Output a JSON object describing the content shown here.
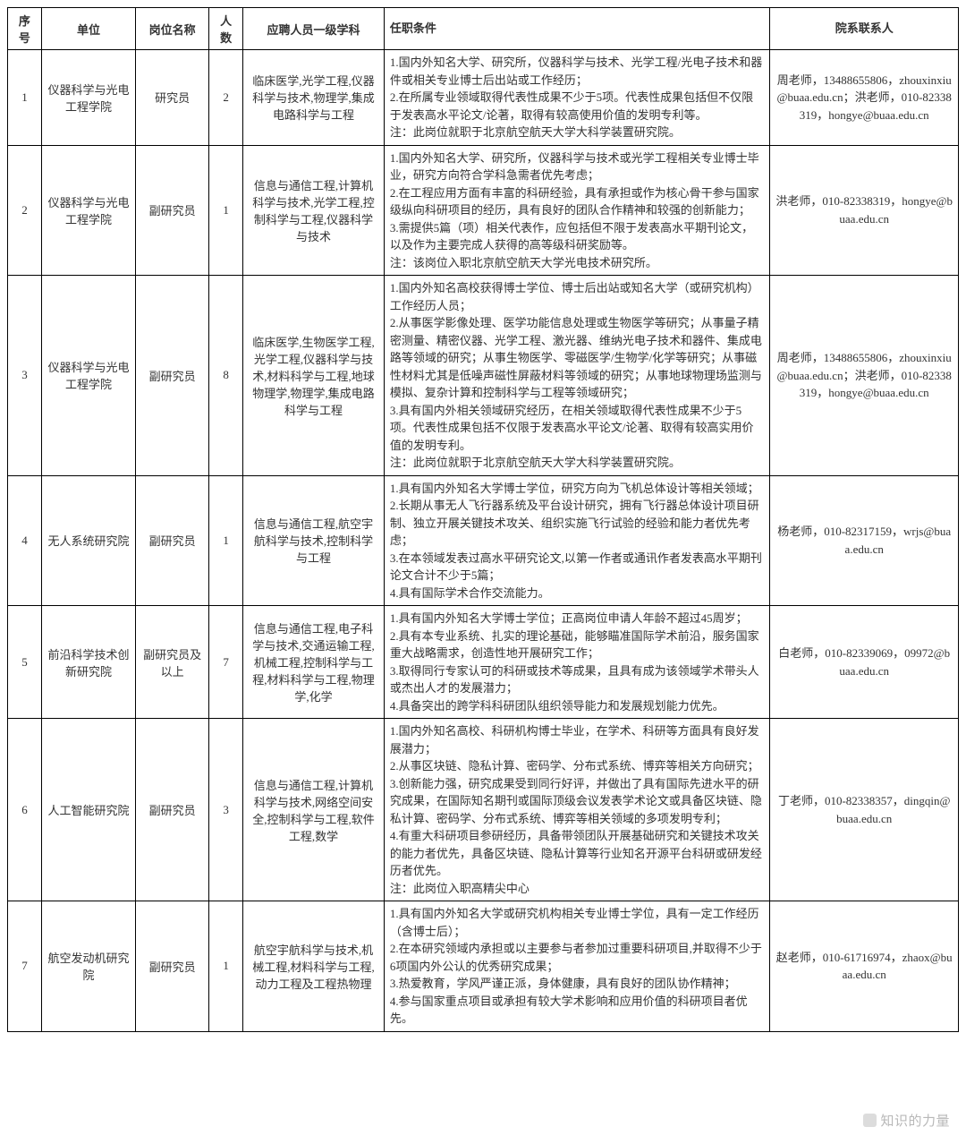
{
  "headers": {
    "seq": "序号",
    "unit": "单位",
    "pos": "岗位名称",
    "num": "人数",
    "subj": "应聘人员一级学科",
    "req": "任职条件",
    "contact": "院系联系人"
  },
  "rows": [
    {
      "seq": "1",
      "unit": "仪器科学与光电工程学院",
      "pos": "研究员",
      "num": "2",
      "subj": "临床医学,光学工程,仪器科学与技术,物理学,集成电路科学与工程",
      "req": "1.国内外知名大学、研究所，仪器科学与技术、光学工程/光电子技术和器件或相关专业博士后出站或工作经历；\n2.在所属专业领域取得代表性成果不少于5项。代表性成果包括但不仅限于发表高水平论文/论著，取得有较高使用价值的发明专利等。\n注：此岗位就职于北京航空航天大学大科学装置研究院。",
      "contact": "周老师，13488655806，zhouxinxiu@buaa.edu.cn；洪老师，010-82338319，hongye@buaa.edu.cn"
    },
    {
      "seq": "2",
      "unit": "仪器科学与光电工程学院",
      "pos": "副研究员",
      "num": "1",
      "subj": "信息与通信工程,计算机科学与技术,光学工程,控制科学与工程,仪器科学与技术",
      "req": "1.国内外知名大学、研究所，仪器科学与技术或光学工程相关专业博士毕业，研究方向符合学科急需者优先考虑；\n2.在工程应用方面有丰富的科研经验，具有承担或作为核心骨干参与国家级纵向科研项目的经历，具有良好的团队合作精神和较强的创新能力；\n3.需提供5篇（项）相关代表作，应包括但不限于发表高水平期刊论文，以及作为主要完成人获得的高等级科研奖励等。\n注：该岗位入职北京航空航天大学光电技术研究所。",
      "contact": "洪老师，010-82338319，hongye@buaa.edu.cn"
    },
    {
      "seq": "3",
      "unit": "仪器科学与光电工程学院",
      "pos": "副研究员",
      "num": "8",
      "subj": "临床医学,生物医学工程,光学工程,仪器科学与技术,材料科学与工程,地球物理学,物理学,集成电路科学与工程",
      "req": "1.国内外知名高校获得博士学位、博士后出站或知名大学（或研究机构）工作经历人员；\n2.从事医学影像处理、医学功能信息处理或生物医学等研究；从事量子精密测量、精密仪器、光学工程、激光器、维纳光电子技术和器件、集成电路等领域的研究；从事生物医学、零磁医学/生物学/化学等研究；从事磁性材料尤其是低噪声磁性屏蔽材料等领域的研究；从事地球物理场监测与模拟、复杂计算和控制科学与工程等领域研究；\n3.具有国内外相关领域研究经历，在相关领域取得代表性成果不少于5项。代表性成果包括不仅限于发表高水平论文/论著、取得有较高实用价值的发明专利。\n注：此岗位就职于北京航空航天大学大科学装置研究院。",
      "contact": "周老师，13488655806，zhouxinxiu@buaa.edu.cn；洪老师，010-82338319，hongye@buaa.edu.cn"
    },
    {
      "seq": "4",
      "unit": "无人系统研究院",
      "pos": "副研究员",
      "num": "1",
      "subj": "信息与通信工程,航空宇航科学与技术,控制科学与工程",
      "req": "1.具有国内外知名大学博士学位，研究方向为飞机总体设计等相关领域；\n2.长期从事无人飞行器系统及平台设计研究，拥有飞行器总体设计项目研制、独立开展关键技术攻关、组织实施飞行试验的经验和能力者优先考虑；\n3.在本领域发表过高水平研究论文,以第一作者或通讯作者发表高水平期刊论文合计不少于5篇；\n4.具有国际学术合作交流能力。",
      "contact": "杨老师，010-82317159，wrjs@buaa.edu.cn"
    },
    {
      "seq": "5",
      "unit": "前沿科学技术创新研究院",
      "pos": "副研究员及以上",
      "num": "7",
      "subj": "信息与通信工程,电子科学与技术,交通运输工程,机械工程,控制科学与工程,材料科学与工程,物理学,化学",
      "req": "1.具有国内外知名大学博士学位；正高岗位申请人年龄不超过45周岁；\n2.具有本专业系统、扎实的理论基础，能够瞄准国际学术前沿，服务国家重大战略需求，创造性地开展研究工作；\n3.取得同行专家认可的科研或技术等成果，且具有成为该领域学术带头人或杰出人才的发展潜力；\n4.具备突出的跨学科科研团队组织领导能力和发展规划能力优先。",
      "contact": "白老师，010-82339069，09972@buaa.edu.cn"
    },
    {
      "seq": "6",
      "unit": "人工智能研究院",
      "pos": "副研究员",
      "num": "3",
      "subj": "信息与通信工程,计算机科学与技术,网络空间安全,控制科学与工程,软件工程,数学",
      "req": "1.国内外知名高校、科研机构博士毕业，在学术、科研等方面具有良好发展潜力；\n2.从事区块链、隐私计算、密码学、分布式系统、博弈等相关方向研究；\n3.创新能力强，研究成果受到同行好评，并做出了具有国际先进水平的研究成果，在国际知名期刊或国际顶级会议发表学术论文或具备区块链、隐私计算、密码学、分布式系统、博弈等相关领域的多项发明专利；\n4.有重大科研项目参研经历，具备带领团队开展基础研究和关键技术攻关的能力者优先，具备区块链、隐私计算等行业知名开源平台科研或研发经历者优先。\n注：此岗位入职高精尖中心",
      "contact": "丁老师，010-82338357，dingqin@buaa.edu.cn"
    },
    {
      "seq": "7",
      "unit": "航空发动机研究院",
      "pos": "副研究员",
      "num": "1",
      "subj": "航空宇航科学与技术,机械工程,材料科学与工程,动力工程及工程热物理",
      "req": "1.具有国内外知名大学或研究机构相关专业博士学位，具有一定工作经历（含博士后）；\n2.在本研究领域内承担或以主要参与者参加过重要科研项目,并取得不少于6项国内外公认的优秀研究成果；\n3.热爱教育，学风严谨正派，身体健康，具有良好的团队协作精神；\n4.参与国家重点项目或承担有较大学术影响和应用价值的科研项目者优先。",
      "contact": "赵老师，010-61716974，zhaox@buaa.edu.cn"
    }
  ],
  "watermark": "知识的力量"
}
